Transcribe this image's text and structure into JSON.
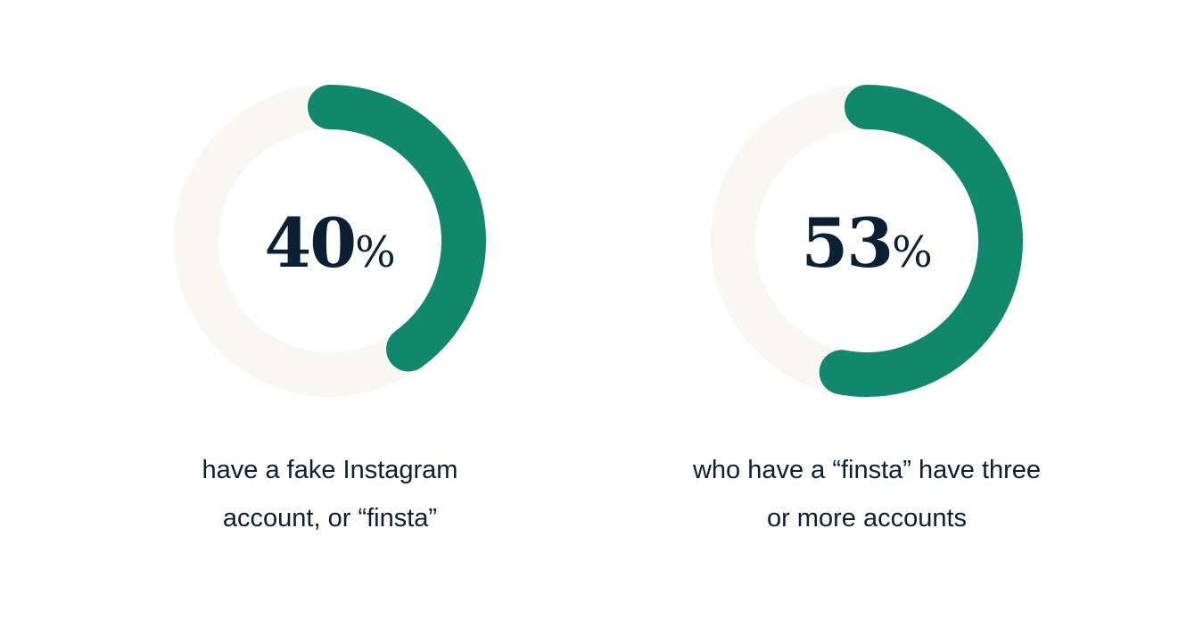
{
  "chart_data": [
    {
      "type": "pie",
      "subtype": "donut-gauge",
      "value": 40,
      "max": 100,
      "label": "40",
      "unit": "%",
      "caption": "have a fake Instagram account, or “finsta”",
      "colors": {
        "fill": "#11876b",
        "track": "#f8f7f2"
      }
    },
    {
      "type": "pie",
      "subtype": "donut-gauge",
      "value": 53,
      "max": 100,
      "label": "53",
      "unit": "%",
      "caption": "who have a “finsta” have three or more accounts",
      "colors": {
        "fill": "#11876b",
        "track": "#f8f7f2"
      }
    }
  ]
}
